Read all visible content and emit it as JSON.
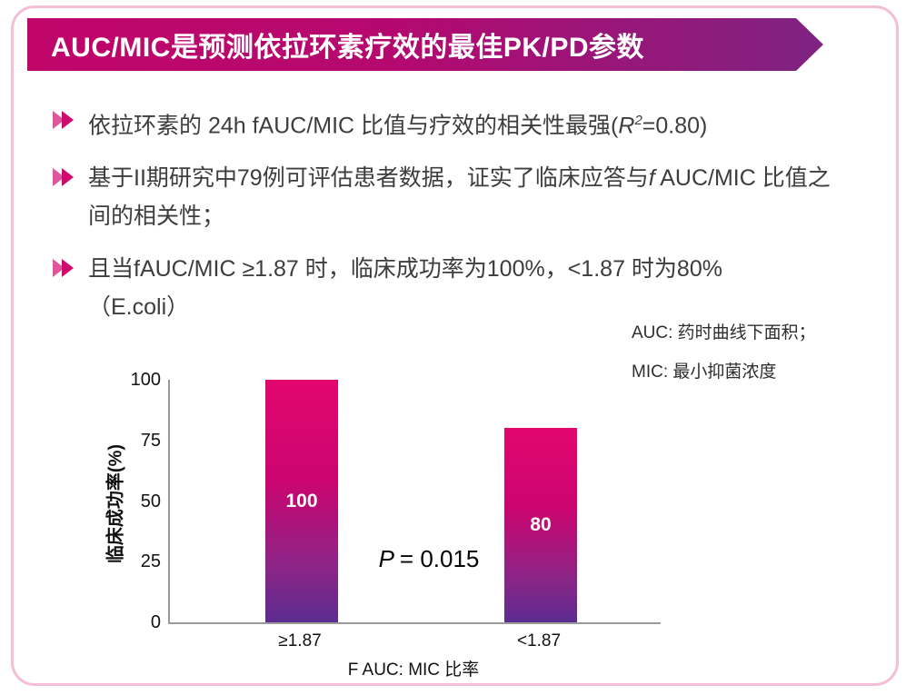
{
  "accent": {
    "banner_gradient_start": "#c00669",
    "banner_gradient_end": "#7e2382",
    "bullet_chevron": "#ce0a6c",
    "frame_border": "#f3bed6",
    "text_color": "#3d3d3d"
  },
  "title": "AUC/MIC是预测依拉环素疗效的最佳PK/PD参数",
  "bullets": {
    "b1": {
      "t1": "依拉环素的 24h fAUC/MIC 比值与疗效的相关性最强(",
      "italic": "R",
      "sup": "2",
      "t2": "=0.80)"
    },
    "b2": {
      "t1": "基于II期研究中79例可评估患者数据，证实了临床应答与",
      "italic": "f",
      "t2": " AUC/MIC 比值之间的相关性；"
    },
    "b3": {
      "t1": "且当fAUC/MIC ≥1.87 时，临床成功率为100%，<1.87 时为80%",
      "t2": "（E.coli）"
    }
  },
  "notes": {
    "line1": "AUC: 药时曲线下面积；",
    "line2": "MIC: 最小抑菌浓度"
  },
  "chart_data": {
    "type": "bar",
    "title": "",
    "categories": [
      "≥1.87",
      "<1.87"
    ],
    "values": [
      100,
      80
    ],
    "xlabel": "F AUC: MIC 比率",
    "ylabel": "临床成功率(%)",
    "ylim": [
      0,
      100
    ],
    "yticks": [
      0,
      25,
      50,
      75,
      100
    ],
    "grid": false,
    "legend": "none",
    "bar_gradient": {
      "top": "#e2066f",
      "bottom": "#5c2c90"
    },
    "annotation": {
      "italic": "P",
      "text": "= 0.015"
    }
  }
}
